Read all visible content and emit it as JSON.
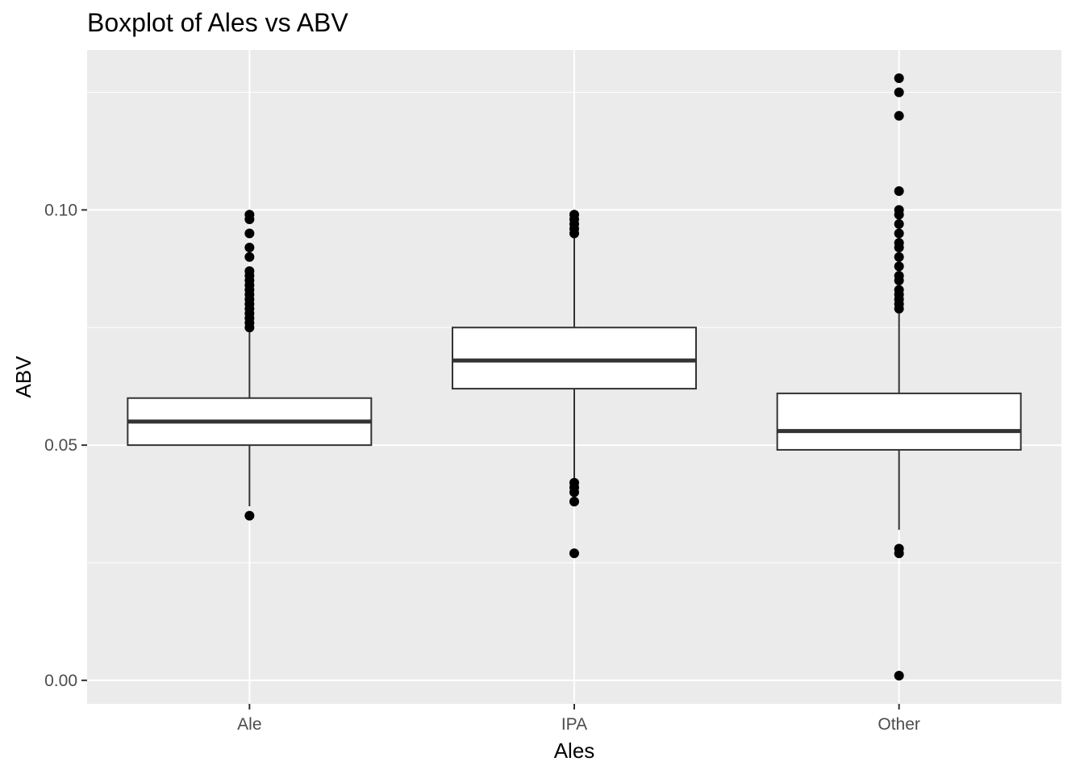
{
  "chart_data": {
    "type": "boxplot",
    "title": "Boxplot of Ales vs ABV",
    "xlabel": "Ales",
    "ylabel": "ABV",
    "categories": [
      "Ale",
      "IPA",
      "Other"
    ],
    "ylim": [
      -0.005,
      0.134
    ],
    "yticks": [
      {
        "value": 0.0,
        "label": "0.00"
      },
      {
        "value": 0.05,
        "label": "0.05"
      },
      {
        "value": 0.1,
        "label": "0.10"
      }
    ],
    "yminor": [
      0.025,
      0.075,
      0.125
    ],
    "grid": true,
    "background": "#ebebeb",
    "grid_color": "#ffffff",
    "boxes": [
      {
        "category": "Ale",
        "q1": 0.05,
        "median": 0.055,
        "q3": 0.06,
        "whisker_low": 0.037,
        "whisker_high": 0.074,
        "outliers": [
          0.035,
          0.075,
          0.076,
          0.077,
          0.078,
          0.079,
          0.08,
          0.081,
          0.082,
          0.083,
          0.084,
          0.085,
          0.086,
          0.087,
          0.09,
          0.092,
          0.095,
          0.098,
          0.099
        ]
      },
      {
        "category": "IPA",
        "q1": 0.062,
        "median": 0.068,
        "q3": 0.075,
        "whisker_low": 0.043,
        "whisker_high": 0.094,
        "outliers": [
          0.027,
          0.038,
          0.04,
          0.041,
          0.042,
          0.095,
          0.096,
          0.097,
          0.098,
          0.099
        ]
      },
      {
        "category": "Other",
        "q1": 0.049,
        "median": 0.053,
        "q3": 0.061,
        "whisker_low": 0.032,
        "whisker_high": 0.078,
        "outliers": [
          0.001,
          0.027,
          0.028,
          0.079,
          0.08,
          0.081,
          0.082,
          0.083,
          0.085,
          0.086,
          0.088,
          0.09,
          0.092,
          0.093,
          0.095,
          0.097,
          0.099,
          0.1,
          0.104,
          0.12,
          0.125,
          0.128
        ]
      }
    ]
  }
}
